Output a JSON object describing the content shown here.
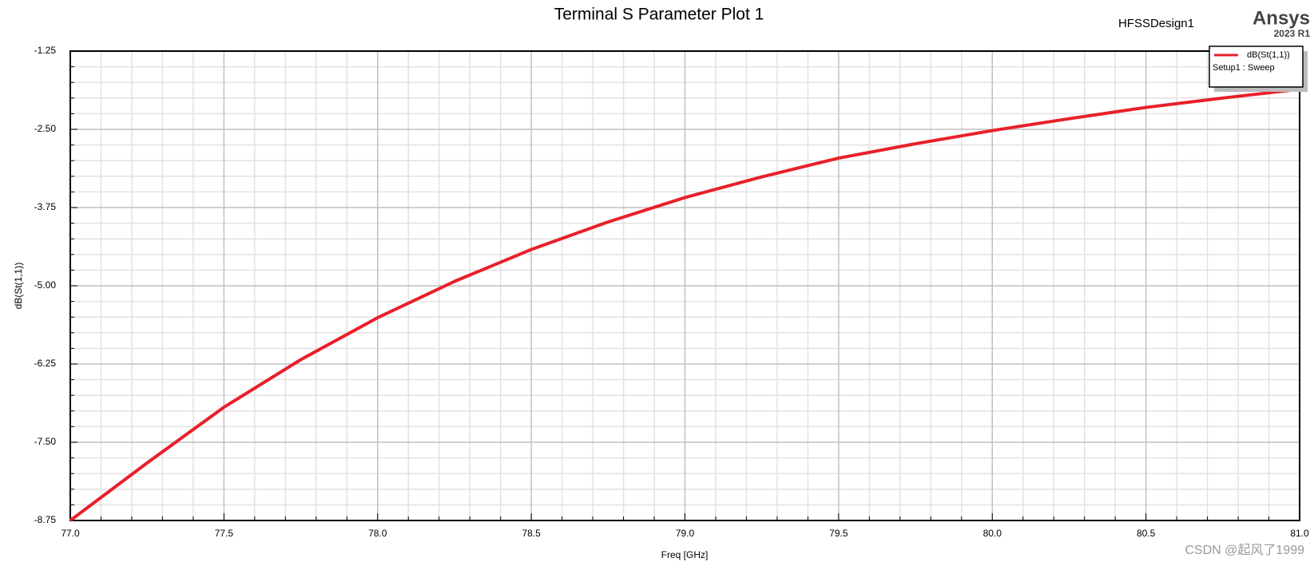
{
  "chart_data": {
    "type": "line",
    "title": "Terminal S Parameter Plot 1",
    "design_name": "HFSSDesign1",
    "brand": "Ansys",
    "version": "2023 R1",
    "watermark": "CSDN @起风了1999",
    "x_label": "Freq [GHz]",
    "y_label": "dB(St(1,1))",
    "x": [
      77.0,
      77.25,
      77.5,
      77.75,
      78.0,
      78.25,
      78.5,
      78.75,
      79.0,
      79.25,
      79.5,
      79.75,
      80.0,
      80.25,
      80.5,
      80.75,
      81.0
    ],
    "series": [
      {
        "name": "dB(St(1,1))",
        "setup": "Setup1 : Sweep",
        "color": "#e8202a",
        "values": [
          -8.75,
          -7.83,
          -6.94,
          -6.18,
          -5.51,
          -4.93,
          -4.42,
          -3.98,
          -3.59,
          -3.26,
          -2.96,
          -2.73,
          -2.52,
          -2.33,
          -2.15,
          -2.0,
          -1.86
        ]
      }
    ],
    "xlim": [
      77.0,
      81.0
    ],
    "xticks": [
      {
        "value": 77.0,
        "label": "77.0"
      },
      {
        "value": 77.5,
        "label": "77.5"
      },
      {
        "value": 78.0,
        "label": "78.0"
      },
      {
        "value": 78.5,
        "label": "78.5"
      },
      {
        "value": 79.0,
        "label": "79.0"
      },
      {
        "value": 79.5,
        "label": "79.5"
      },
      {
        "value": 80.0,
        "label": "80.0"
      },
      {
        "value": 80.5,
        "label": "80.5"
      },
      {
        "value": 81.0,
        "label": "81.0"
      }
    ],
    "xminorticks": [
      77.1,
      77.2,
      77.3,
      77.4,
      77.6,
      77.7,
      77.8,
      77.9,
      78.1,
      78.2,
      78.3,
      78.4,
      78.6,
      78.7,
      78.8,
      78.9,
      79.1,
      79.2,
      79.3,
      79.4,
      79.6,
      79.7,
      79.8,
      79.9,
      80.1,
      80.2,
      80.3,
      80.4,
      80.6,
      80.7,
      80.8,
      80.9
    ],
    "ylim": [
      -8.75,
      -1.25
    ],
    "yticks": [
      {
        "value": -8.75,
        "label": "-8.75"
      },
      {
        "value": -7.5,
        "label": "-7.50"
      },
      {
        "value": -6.25,
        "label": "-6.25"
      },
      {
        "value": -5.0,
        "label": "-5.00"
      },
      {
        "value": -3.75,
        "label": "-3.75"
      },
      {
        "value": -2.5,
        "label": "-2.50"
      },
      {
        "value": -1.25,
        "label": "-1.25"
      }
    ],
    "yminorticks": [
      -8.5,
      -8.25,
      -8.0,
      -7.75,
      -7.25,
      -7.0,
      -6.75,
      -6.5,
      -6.0,
      -5.75,
      -5.5,
      -5.25,
      -4.75,
      -4.5,
      -4.25,
      -4.0,
      -3.5,
      -3.25,
      -3.0,
      -2.75,
      -2.25,
      -2.0,
      -1.75,
      -1.5
    ],
    "grid": true,
    "legend": "top-right"
  }
}
